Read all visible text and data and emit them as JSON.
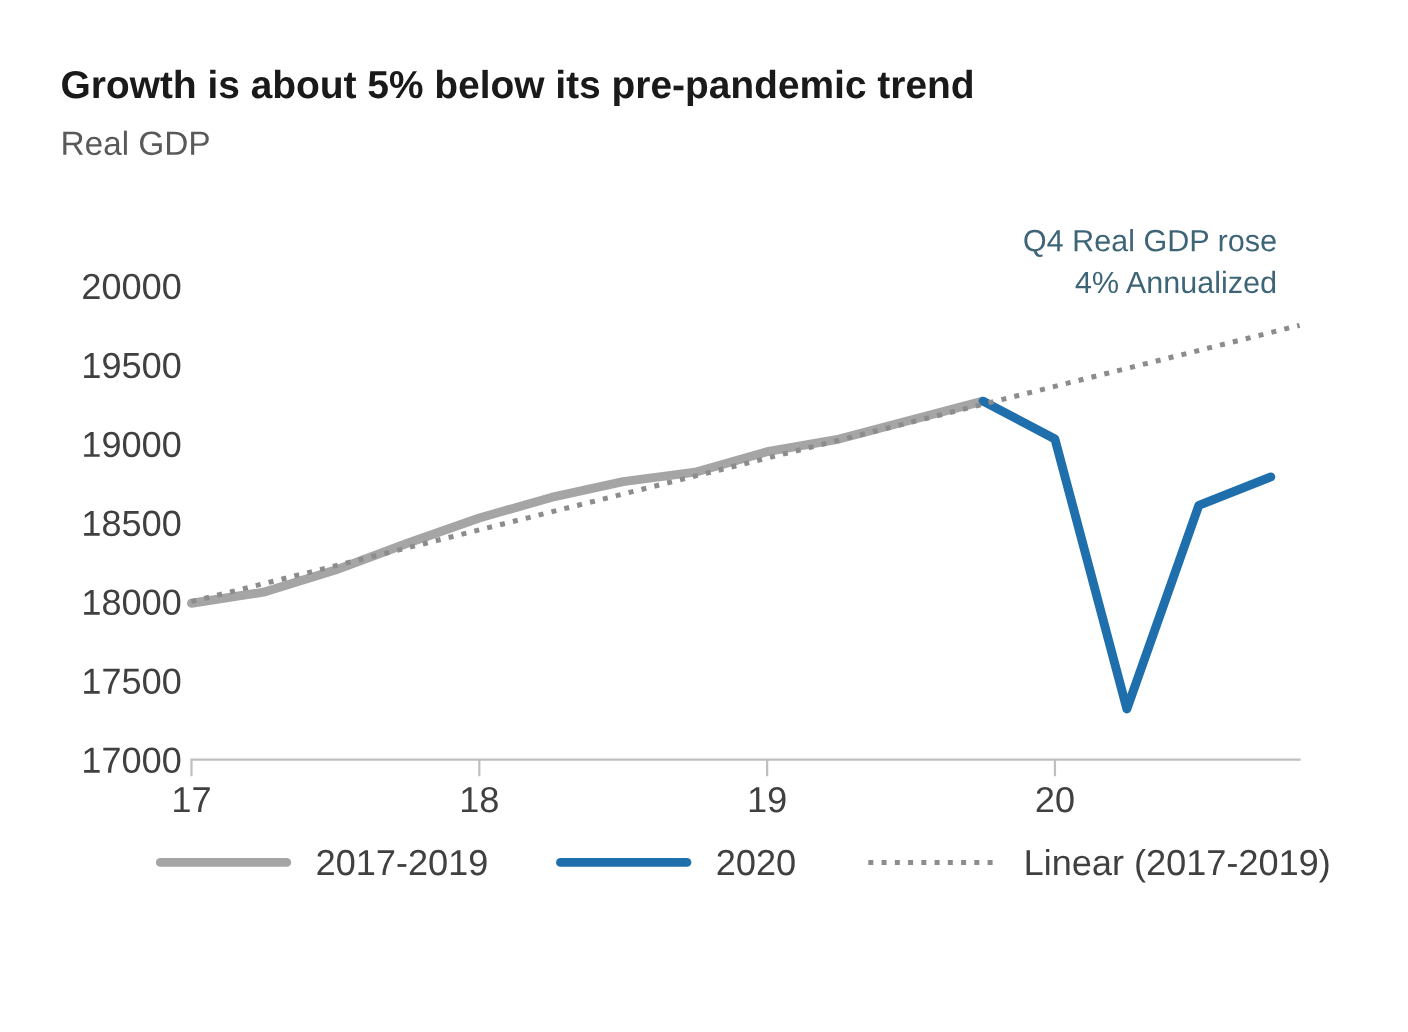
{
  "chart_data": {
    "type": "line",
    "title": "Growth is about 5% below its pre-pandemic trend",
    "subtitle": "Real GDP",
    "annotations": [
      "Q4 Real GDP rose\n4% Annualized"
    ],
    "xlim": [
      17,
      20.85
    ],
    "xticks": [
      17,
      18,
      19,
      20
    ],
    "ylim": [
      17000,
      20000
    ],
    "yticks": [
      17000,
      17500,
      18000,
      18500,
      19000,
      19500,
      20000
    ],
    "grid": false,
    "legend": "bottom",
    "marker": "none",
    "series": [
      {
        "name": "2017-2019",
        "color": "#a5a5a5",
        "line_style": "solid",
        "x": [
          17,
          17.25,
          17.5,
          17.75,
          18,
          18.25,
          18.5,
          18.75,
          19,
          19.25,
          19.5,
          19.75
        ],
        "values": [
          17990,
          18060,
          18200,
          18370,
          18530,
          18660,
          18760,
          18820,
          18950,
          19030,
          19150,
          19270
        ]
      },
      {
        "name": "2020",
        "color": "#1f6fad",
        "line_style": "solid",
        "x": [
          19.75,
          20,
          20.25,
          20.5,
          20.75
        ],
        "values": [
          19270,
          19030,
          17320,
          18610,
          18790
        ]
      },
      {
        "name": "Linear (2017-2019)",
        "color": "#8c8c8c",
        "line_style": "dotted",
        "x": [
          17,
          20.85
        ],
        "values": [
          18000,
          19750
        ]
      }
    ]
  }
}
